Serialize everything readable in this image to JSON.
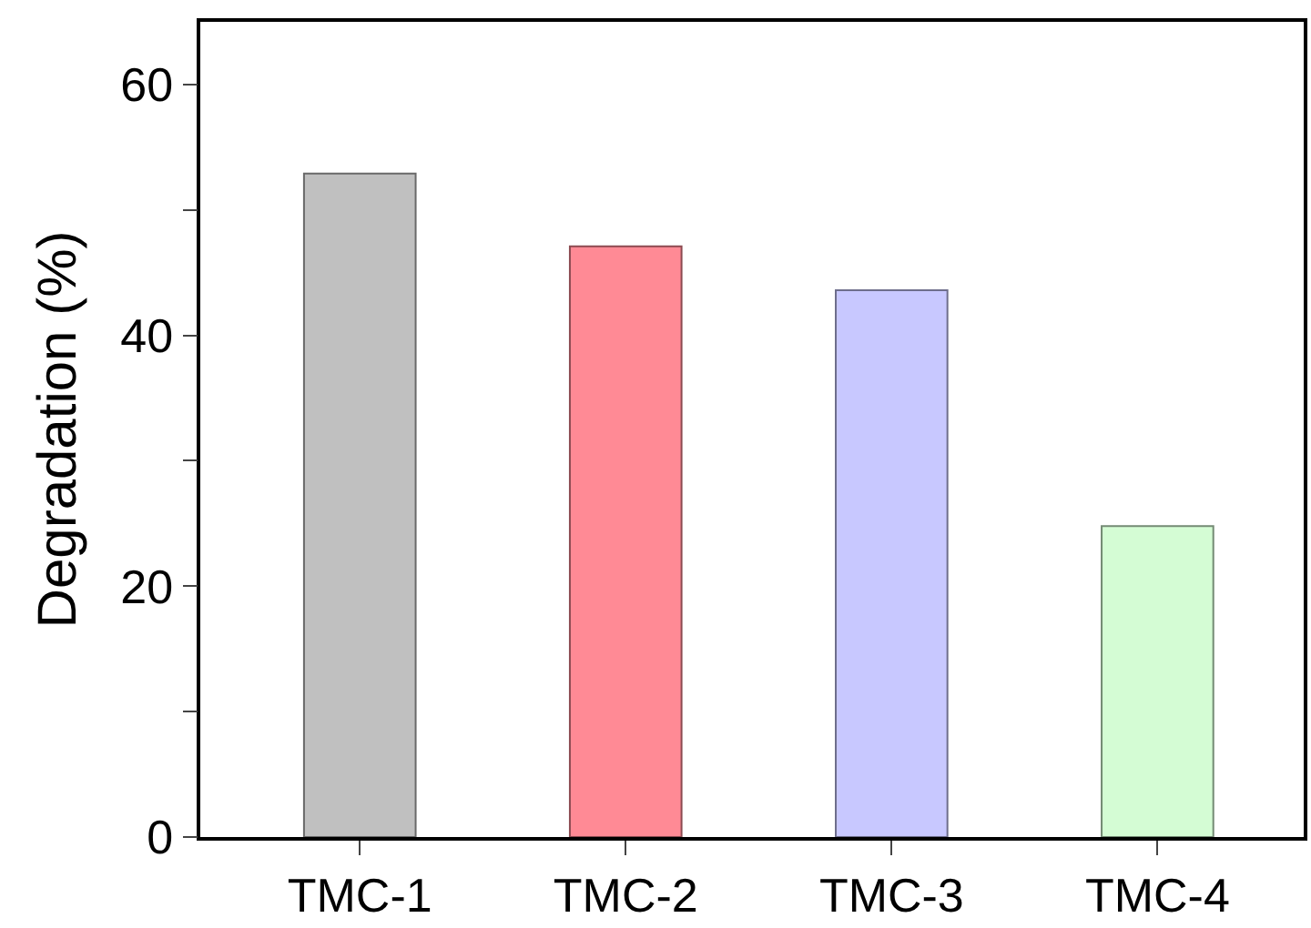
{
  "chart_data": {
    "type": "bar",
    "ylabel": "Degradation (%)",
    "categories": [
      "TMC-1",
      "TMC-2",
      "TMC-3",
      "TMC-4"
    ],
    "values": [
      52.9,
      47.1,
      43.6,
      24.8
    ],
    "colors": [
      "#c0c0c0",
      "#ff8a95",
      "#c8c8ff",
      "#d4fcd4"
    ],
    "ylim": [
      0,
      65
    ],
    "yticks": [
      0,
      {
        "value": 10,
        "label": null
      },
      20,
      {
        "value": 30,
        "label": null
      },
      40,
      {
        "value": 50,
        "label": null
      },
      60
    ],
    "legend": false
  }
}
